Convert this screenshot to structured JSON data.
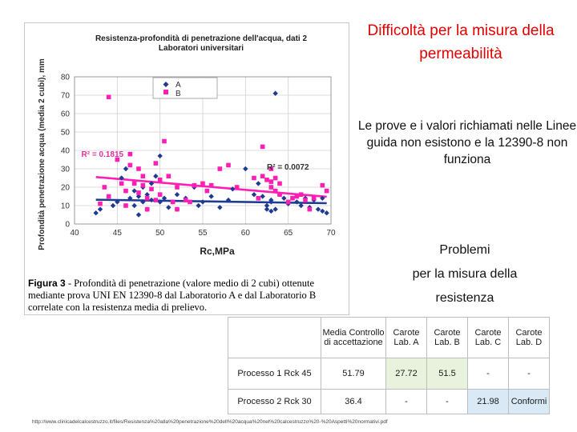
{
  "side": {
    "title": "Difficoltà per la misura della permeabilità",
    "text1": "Le prove e i valori richiamati nelle Linee guida non esistono e la 12390-8 non funziona",
    "text2_line1": "Problemi",
    "text2_line2": "per la misura della",
    "text2_line3": "resistenza"
  },
  "caption": {
    "label": "Figura 3",
    "text": " - Profondità di penetrazione (valore medio di 2 cubi) ottenute mediante prova UNI EN 12390-8 dal Laboratorio A e dal Laboratorio B correlate con la resistenza media di prelievo."
  },
  "colors": {
    "A": "#1f3a93",
    "B": "#ff1fb4",
    "title": "#e00000"
  },
  "chart_data": {
    "type": "scatter",
    "title": "Resistenza-profondità di penetrazione dell'acqua, dati 2 Laboratori universitari",
    "xlabel": "Rc,MPa",
    "ylabel": "Profondità penetrazione acqua (media 2 cubi), mm",
    "xlim": [
      40,
      70
    ],
    "ylim": [
      0,
      80
    ],
    "xticks": [
      "40",
      "45",
      "50",
      "55",
      "60",
      "65",
      "70"
    ],
    "yticks": [
      "0",
      "10",
      "20",
      "30",
      "40",
      "50",
      "60",
      "70",
      "80"
    ],
    "grid": true,
    "legend": "top-center",
    "annotations": [
      "R² = 0.1815",
      "R² = 0.0072"
    ],
    "series": [
      {
        "name": "A",
        "marker": "diamond",
        "points": [
          [
            42.5,
            6
          ],
          [
            43,
            8
          ],
          [
            44.5,
            10
          ],
          [
            45,
            12
          ],
          [
            45.5,
            25
          ],
          [
            46,
            30
          ],
          [
            46.5,
            14
          ],
          [
            47,
            10
          ],
          [
            47,
            18
          ],
          [
            47.5,
            15
          ],
          [
            47.5,
            5
          ],
          [
            48,
            12
          ],
          [
            48,
            20
          ],
          [
            48.5,
            8
          ],
          [
            48.5,
            16
          ],
          [
            49,
            22
          ],
          [
            49,
            13
          ],
          [
            49.5,
            26
          ],
          [
            50,
            12
          ],
          [
            50,
            37
          ],
          [
            50.5,
            14
          ],
          [
            51,
            9
          ],
          [
            51.5,
            12
          ],
          [
            52,
            16
          ],
          [
            52,
            8
          ],
          [
            53,
            14
          ],
          [
            54,
            20
          ],
          [
            54.5,
            10
          ],
          [
            55,
            12
          ],
          [
            56,
            15
          ],
          [
            57,
            9
          ],
          [
            58,
            13
          ],
          [
            58.5,
            19
          ],
          [
            60,
            30
          ],
          [
            61,
            16
          ],
          [
            61.5,
            22
          ],
          [
            62,
            15
          ],
          [
            62.5,
            10
          ],
          [
            62.5,
            8
          ],
          [
            63,
            12
          ],
          [
            63,
            13
          ],
          [
            63,
            7
          ],
          [
            63.5,
            8
          ],
          [
            63.5,
            71
          ],
          [
            64,
            16
          ],
          [
            64.5,
            14
          ],
          [
            65,
            11
          ],
          [
            66,
            12
          ],
          [
            66.5,
            10
          ],
          [
            67,
            14
          ],
          [
            67.5,
            9
          ],
          [
            68,
            13
          ],
          [
            68.5,
            8
          ],
          [
            69,
            7
          ],
          [
            69,
            14
          ],
          [
            69.5,
            6
          ]
        ]
      },
      {
        "name": "B",
        "marker": "square",
        "points": [
          [
            43,
            11
          ],
          [
            43.5,
            20
          ],
          [
            44,
            15
          ],
          [
            44,
            69
          ],
          [
            45,
            35
          ],
          [
            45.5,
            22
          ],
          [
            46,
            18
          ],
          [
            46,
            10
          ],
          [
            46.5,
            32
          ],
          [
            46.5,
            38
          ],
          [
            47,
            22
          ],
          [
            47.5,
            30
          ],
          [
            47.5,
            17
          ],
          [
            48,
            26
          ],
          [
            48,
            21
          ],
          [
            48.5,
            8
          ],
          [
            48.5,
            14
          ],
          [
            49,
            19
          ],
          [
            49.5,
            33
          ],
          [
            49.5,
            13
          ],
          [
            50,
            16
          ],
          [
            50,
            24
          ],
          [
            50.5,
            45
          ],
          [
            51,
            26
          ],
          [
            51.5,
            12
          ],
          [
            52,
            20
          ],
          [
            52,
            8
          ],
          [
            53,
            13
          ],
          [
            53.5,
            12
          ],
          [
            54,
            21
          ],
          [
            55,
            22
          ],
          [
            55.5,
            18
          ],
          [
            56,
            21
          ],
          [
            57,
            30
          ],
          [
            58,
            32
          ],
          [
            59,
            20
          ],
          [
            61,
            25
          ],
          [
            61.5,
            14
          ],
          [
            62,
            42
          ],
          [
            62,
            26
          ],
          [
            62.5,
            24
          ],
          [
            63,
            23
          ],
          [
            63,
            20
          ],
          [
            63,
            30
          ],
          [
            63.5,
            18
          ],
          [
            63.5,
            25
          ],
          [
            64,
            22
          ],
          [
            64,
            16
          ],
          [
            65,
            12
          ],
          [
            65.5,
            14
          ],
          [
            66,
            15
          ],
          [
            66.5,
            16
          ],
          [
            67,
            13
          ],
          [
            67.5,
            8
          ],
          [
            68,
            14
          ],
          [
            69,
            21
          ],
          [
            69.5,
            18
          ]
        ]
      }
    ],
    "trendlines": [
      {
        "series": "A",
        "from": [
          42.5,
          13.2
        ],
        "to": [
          69.5,
          11.3
        ]
      },
      {
        "series": "B",
        "from": [
          42.5,
          25.5
        ],
        "to": [
          69.5,
          14.8
        ]
      }
    ]
  },
  "table": {
    "headers": [
      "",
      "Media Controllo di accettazione",
      "Carote Lab. A",
      "Carote Lab. B",
      "Carote Lab. C",
      "Carote Lab. D"
    ],
    "rows": [
      [
        "Processo 1  Rck 45",
        "51.79",
        "27.72",
        "51.5",
        "-",
        "-"
      ],
      [
        "Processo 2  Rck 30",
        "36.4",
        "-",
        "-",
        "21.98",
        "Conformi"
      ]
    ]
  },
  "source_url": "http://www.clinicadelcalcestruzzo.it/files/Resistenza%20alla%20penetrazione%20dell%20acqua%20nel%20calcestruzzo%20-%20Aspetti%20normativi.pdf"
}
